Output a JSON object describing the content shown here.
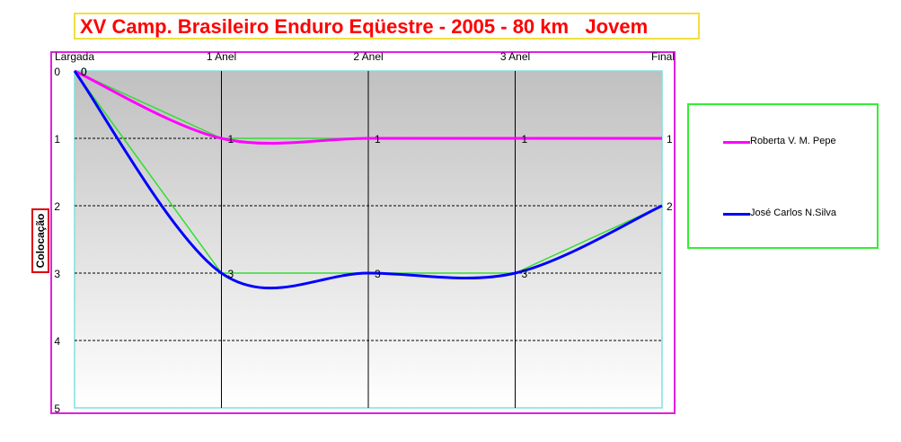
{
  "chart_data": {
    "type": "line",
    "title": "XV Camp. Brasileiro Enduro Eqüestre - 2005 - 80 km   Jovem",
    "ylabel": "Colocação",
    "xlabel": "",
    "categories": [
      "Largada",
      "1 Anel",
      "2 Anel",
      "3 Anel",
      "Final"
    ],
    "yticks": [
      "0",
      "1",
      "2",
      "3",
      "4",
      "5"
    ],
    "ylim": [
      0,
      5
    ],
    "y_inverted": true,
    "grid": true,
    "legend_position": "right",
    "series": [
      {
        "name": "Roberta V. M. Pepe",
        "color": "#ff00ff",
        "values": [
          0,
          1,
          1,
          1,
          1
        ],
        "labels": [
          "0",
          "1",
          "1",
          "1",
          "1"
        ]
      },
      {
        "name": "José Carlos N.Silva",
        "color": "#0000ff",
        "values": [
          0,
          3,
          3,
          3,
          2
        ],
        "labels": [
          "0",
          "3",
          "3",
          "3",
          "2"
        ]
      }
    ]
  }
}
